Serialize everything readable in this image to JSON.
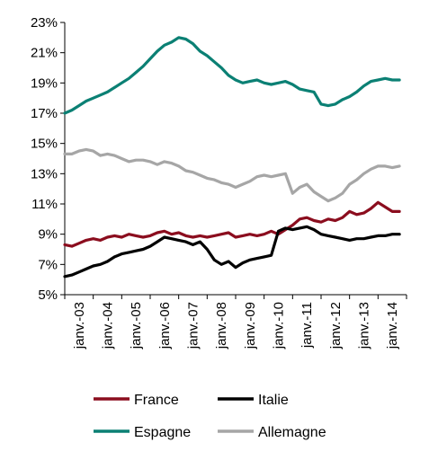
{
  "chart_data": {
    "type": "line",
    "title": "",
    "xlabel": "",
    "ylabel": "",
    "ylim": [
      5,
      23
    ],
    "y_ticks": [
      5,
      7,
      9,
      11,
      13,
      15,
      17,
      19,
      21,
      23
    ],
    "y_tick_labels": [
      "5%",
      "7%",
      "9%",
      "11%",
      "13%",
      "15%",
      "17%",
      "19%",
      "21%",
      "23%"
    ],
    "x_tick_labels": [
      "janv.-03",
      "janv.-04",
      "janv.-05",
      "janv.-06",
      "janv.-07",
      "janv.-08",
      "janv.-09",
      "janv.-10",
      "janv.-11",
      "janv.-12",
      "janv.-13",
      "janv.-14"
    ],
    "x_range": [
      "2003-01",
      "2014-10"
    ],
    "grid": false,
    "legend_position": "bottom",
    "series": [
      {
        "name": "France",
        "color": "#8B0D1E",
        "points": [
          [
            "2003-01",
            8.3
          ],
          [
            "2003-04",
            8.2
          ],
          [
            "2003-07",
            8.4
          ],
          [
            "2003-10",
            8.6
          ],
          [
            "2004-01",
            8.7
          ],
          [
            "2004-04",
            8.6
          ],
          [
            "2004-07",
            8.8
          ],
          [
            "2004-10",
            8.9
          ],
          [
            "2005-01",
            8.8
          ],
          [
            "2005-04",
            9.0
          ],
          [
            "2005-07",
            8.9
          ],
          [
            "2005-10",
            8.8
          ],
          [
            "2006-01",
            8.9
          ],
          [
            "2006-04",
            9.1
          ],
          [
            "2006-07",
            9.2
          ],
          [
            "2006-10",
            9.0
          ],
          [
            "2007-01",
            9.1
          ],
          [
            "2007-04",
            8.9
          ],
          [
            "2007-07",
            8.8
          ],
          [
            "2007-10",
            8.9
          ],
          [
            "2008-01",
            8.8
          ],
          [
            "2008-04",
            8.9
          ],
          [
            "2008-07",
            9.0
          ],
          [
            "2008-10",
            9.1
          ],
          [
            "2009-01",
            8.8
          ],
          [
            "2009-04",
            8.9
          ],
          [
            "2009-07",
            9.0
          ],
          [
            "2009-10",
            8.9
          ],
          [
            "2010-01",
            9.0
          ],
          [
            "2010-04",
            9.2
          ],
          [
            "2010-07",
            9.0
          ],
          [
            "2010-10",
            9.3
          ],
          [
            "2011-01",
            9.6
          ],
          [
            "2011-04",
            10.0
          ],
          [
            "2011-07",
            10.1
          ],
          [
            "2011-10",
            9.9
          ],
          [
            "2012-01",
            9.8
          ],
          [
            "2012-04",
            10.0
          ],
          [
            "2012-07",
            9.9
          ],
          [
            "2012-10",
            10.1
          ],
          [
            "2013-01",
            10.5
          ],
          [
            "2013-04",
            10.3
          ],
          [
            "2013-07",
            10.4
          ],
          [
            "2013-10",
            10.7
          ],
          [
            "2014-01",
            11.1
          ],
          [
            "2014-04",
            10.8
          ],
          [
            "2014-07",
            10.5
          ],
          [
            "2014-10",
            10.5
          ]
        ]
      },
      {
        "name": "Italie",
        "color": "#000000",
        "points": [
          [
            "2003-01",
            6.2
          ],
          [
            "2003-04",
            6.3
          ],
          [
            "2003-07",
            6.5
          ],
          [
            "2003-10",
            6.7
          ],
          [
            "2004-01",
            6.9
          ],
          [
            "2004-04",
            7.0
          ],
          [
            "2004-07",
            7.2
          ],
          [
            "2004-10",
            7.5
          ],
          [
            "2005-01",
            7.7
          ],
          [
            "2005-04",
            7.8
          ],
          [
            "2005-07",
            7.9
          ],
          [
            "2005-10",
            8.0
          ],
          [
            "2006-01",
            8.2
          ],
          [
            "2006-04",
            8.5
          ],
          [
            "2006-07",
            8.8
          ],
          [
            "2006-10",
            8.7
          ],
          [
            "2007-01",
            8.6
          ],
          [
            "2007-04",
            8.5
          ],
          [
            "2007-07",
            8.3
          ],
          [
            "2007-10",
            8.5
          ],
          [
            "2008-01",
            8.0
          ],
          [
            "2008-04",
            7.3
          ],
          [
            "2008-07",
            7.0
          ],
          [
            "2008-10",
            7.2
          ],
          [
            "2009-01",
            6.8
          ],
          [
            "2009-04",
            7.1
          ],
          [
            "2009-07",
            7.3
          ],
          [
            "2009-10",
            7.4
          ],
          [
            "2010-01",
            7.5
          ],
          [
            "2010-04",
            7.6
          ],
          [
            "2010-07",
            9.2
          ],
          [
            "2010-10",
            9.4
          ],
          [
            "2011-01",
            9.3
          ],
          [
            "2011-04",
            9.4
          ],
          [
            "2011-07",
            9.5
          ],
          [
            "2011-10",
            9.3
          ],
          [
            "2012-01",
            9.0
          ],
          [
            "2012-04",
            8.9
          ],
          [
            "2012-07",
            8.8
          ],
          [
            "2012-10",
            8.7
          ],
          [
            "2013-01",
            8.6
          ],
          [
            "2013-04",
            8.7
          ],
          [
            "2013-07",
            8.7
          ],
          [
            "2013-10",
            8.8
          ],
          [
            "2014-01",
            8.9
          ],
          [
            "2014-04",
            8.9
          ],
          [
            "2014-07",
            9.0
          ],
          [
            "2014-10",
            9.0
          ]
        ]
      },
      {
        "name": "Espagne",
        "color": "#0B8074",
        "points": [
          [
            "2003-01",
            17.0
          ],
          [
            "2003-04",
            17.2
          ],
          [
            "2003-07",
            17.5
          ],
          [
            "2003-10",
            17.8
          ],
          [
            "2004-01",
            18.0
          ],
          [
            "2004-04",
            18.2
          ],
          [
            "2004-07",
            18.4
          ],
          [
            "2004-10",
            18.7
          ],
          [
            "2005-01",
            19.0
          ],
          [
            "2005-04",
            19.3
          ],
          [
            "2005-07",
            19.7
          ],
          [
            "2005-10",
            20.1
          ],
          [
            "2006-01",
            20.6
          ],
          [
            "2006-04",
            21.1
          ],
          [
            "2006-07",
            21.5
          ],
          [
            "2006-10",
            21.7
          ],
          [
            "2007-01",
            22.0
          ],
          [
            "2007-04",
            21.9
          ],
          [
            "2007-07",
            21.6
          ],
          [
            "2007-10",
            21.1
          ],
          [
            "2008-01",
            20.8
          ],
          [
            "2008-04",
            20.4
          ],
          [
            "2008-07",
            20.0
          ],
          [
            "2008-10",
            19.5
          ],
          [
            "2009-01",
            19.2
          ],
          [
            "2009-04",
            19.0
          ],
          [
            "2009-07",
            19.1
          ],
          [
            "2009-10",
            19.2
          ],
          [
            "2010-01",
            19.0
          ],
          [
            "2010-04",
            18.9
          ],
          [
            "2010-07",
            19.0
          ],
          [
            "2010-10",
            19.1
          ],
          [
            "2011-01",
            18.9
          ],
          [
            "2011-04",
            18.6
          ],
          [
            "2011-07",
            18.5
          ],
          [
            "2011-10",
            18.4
          ],
          [
            "2012-01",
            17.6
          ],
          [
            "2012-04",
            17.5
          ],
          [
            "2012-07",
            17.6
          ],
          [
            "2012-10",
            17.9
          ],
          [
            "2013-01",
            18.1
          ],
          [
            "2013-04",
            18.4
          ],
          [
            "2013-07",
            18.8
          ],
          [
            "2013-10",
            19.1
          ],
          [
            "2014-01",
            19.2
          ],
          [
            "2014-04",
            19.3
          ],
          [
            "2014-07",
            19.2
          ],
          [
            "2014-10",
            19.2
          ]
        ]
      },
      {
        "name": "Allemagne",
        "color": "#A6A6A6",
        "points": [
          [
            "2003-01",
            14.3
          ],
          [
            "2003-04",
            14.3
          ],
          [
            "2003-07",
            14.5
          ],
          [
            "2003-10",
            14.6
          ],
          [
            "2004-01",
            14.5
          ],
          [
            "2004-04",
            14.2
          ],
          [
            "2004-07",
            14.3
          ],
          [
            "2004-10",
            14.2
          ],
          [
            "2005-01",
            14.0
          ],
          [
            "2005-04",
            13.8
          ],
          [
            "2005-07",
            13.9
          ],
          [
            "2005-10",
            13.9
          ],
          [
            "2006-01",
            13.8
          ],
          [
            "2006-04",
            13.6
          ],
          [
            "2006-07",
            13.8
          ],
          [
            "2006-10",
            13.7
          ],
          [
            "2007-01",
            13.5
          ],
          [
            "2007-04",
            13.2
          ],
          [
            "2007-07",
            13.1
          ],
          [
            "2007-10",
            12.9
          ],
          [
            "2008-01",
            12.7
          ],
          [
            "2008-04",
            12.6
          ],
          [
            "2008-07",
            12.4
          ],
          [
            "2008-10",
            12.3
          ],
          [
            "2009-01",
            12.1
          ],
          [
            "2009-04",
            12.3
          ],
          [
            "2009-07",
            12.5
          ],
          [
            "2009-10",
            12.8
          ],
          [
            "2010-01",
            12.9
          ],
          [
            "2010-04",
            12.8
          ],
          [
            "2010-07",
            12.9
          ],
          [
            "2010-10",
            13.0
          ],
          [
            "2011-01",
            11.7
          ],
          [
            "2011-04",
            12.1
          ],
          [
            "2011-07",
            12.3
          ],
          [
            "2011-10",
            11.8
          ],
          [
            "2012-01",
            11.5
          ],
          [
            "2012-04",
            11.2
          ],
          [
            "2012-07",
            11.4
          ],
          [
            "2012-10",
            11.7
          ],
          [
            "2013-01",
            12.3
          ],
          [
            "2013-04",
            12.6
          ],
          [
            "2013-07",
            13.0
          ],
          [
            "2013-10",
            13.3
          ],
          [
            "2014-01",
            13.5
          ],
          [
            "2014-04",
            13.5
          ],
          [
            "2014-07",
            13.4
          ],
          [
            "2014-10",
            13.5
          ]
        ]
      }
    ]
  }
}
